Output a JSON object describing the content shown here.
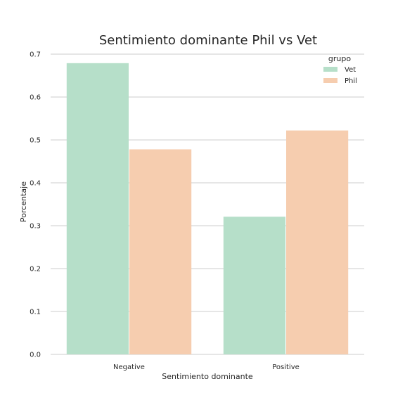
{
  "chart_data": {
    "type": "bar",
    "title": "Sentimiento dominante Phil vs Vet",
    "xlabel": "Sentimiento dominante",
    "ylabel": "Porcentaje",
    "categories": [
      "Negative",
      "Positive"
    ],
    "series": [
      {
        "name": "Vet",
        "values": [
          0.679,
          0.321
        ],
        "color": "#b6dfc9"
      },
      {
        "name": "Phil",
        "values": [
          0.478,
          0.522
        ],
        "color": "#f6cdaf"
      }
    ],
    "ylim": [
      0,
      0.7
    ],
    "yticks": [
      "0.0",
      "0.1",
      "0.2",
      "0.3",
      "0.4",
      "0.5",
      "0.6",
      "0.7"
    ],
    "grid": "horizontal",
    "legend": {
      "title": "grupo",
      "position": "top-right"
    }
  }
}
